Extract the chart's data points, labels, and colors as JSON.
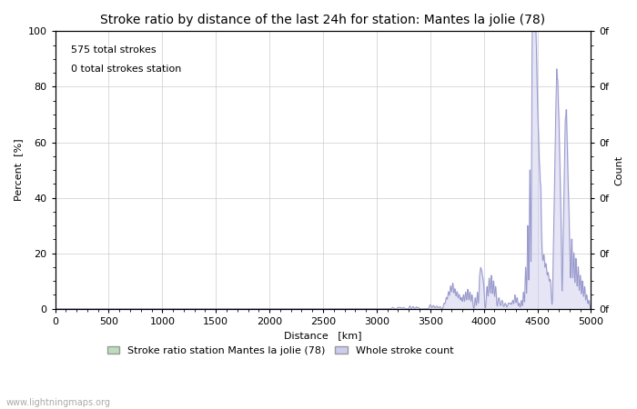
{
  "title": "Stroke ratio by distance of the last 24h for station: Mantes la jolie (78)",
  "xlabel": "Distance   [km]",
  "ylabel_left": "Percent  [%]",
  "ylabel_right": "Count",
  "annotation_line1": "575 total strokes",
  "annotation_line2": "0 total strokes station",
  "watermark": "www.lightningmaps.org",
  "xlim": [
    0,
    5000
  ],
  "ylim": [
    0,
    100
  ],
  "xticks": [
    0,
    500,
    1000,
    1500,
    2000,
    2500,
    3000,
    3500,
    4000,
    4500,
    5000
  ],
  "yticks_left": [
    0,
    20,
    40,
    60,
    80,
    100
  ],
  "line_color": "#9999cc",
  "fill_color": "#ccccee",
  "fill_alpha": 0.5,
  "legend_label_green": "Stroke ratio station Mantes la jolie (78)",
  "legend_label_blue": "Whole stroke count",
  "legend_color_green": "#bbddbb",
  "legend_color_blue": "#ccccee",
  "background_color": "#ffffff",
  "grid_color": "#cccccc",
  "title_fontsize": 10,
  "axis_fontsize": 8,
  "annotation_fontsize": 8
}
